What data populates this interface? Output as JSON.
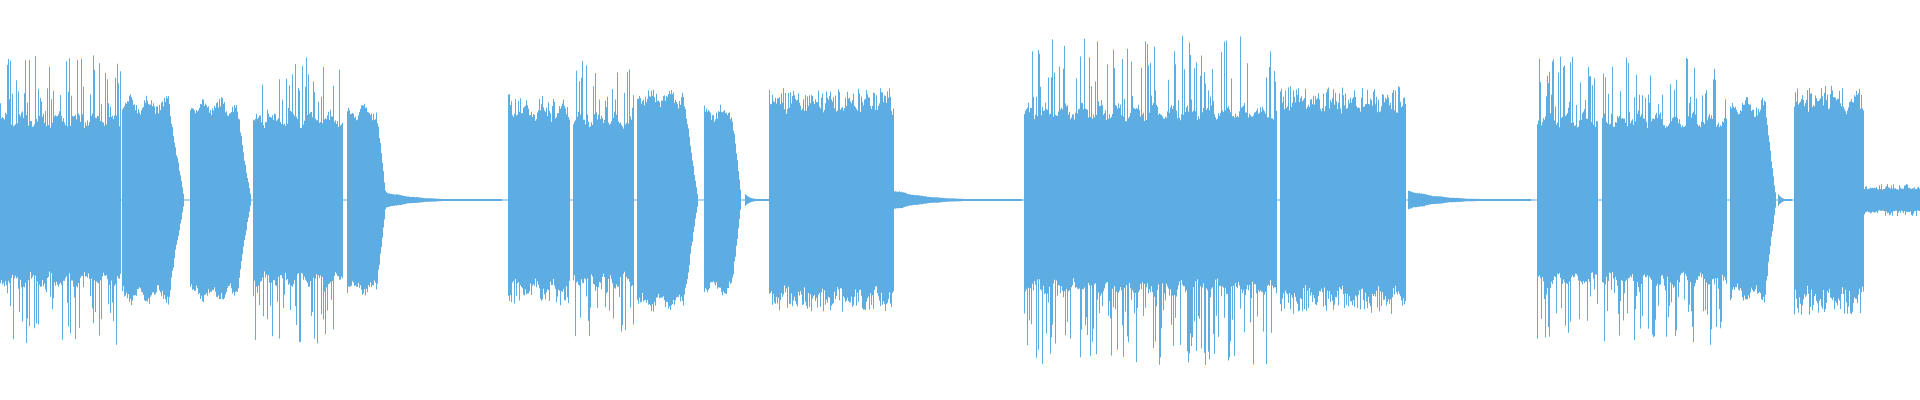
{
  "chart_data": {
    "type": "area",
    "title": "",
    "xlabel": "",
    "ylabel": "",
    "grid": false,
    "legend": "none",
    "series_color": "#5dade2",
    "background": "#ffffff"
  }
}
